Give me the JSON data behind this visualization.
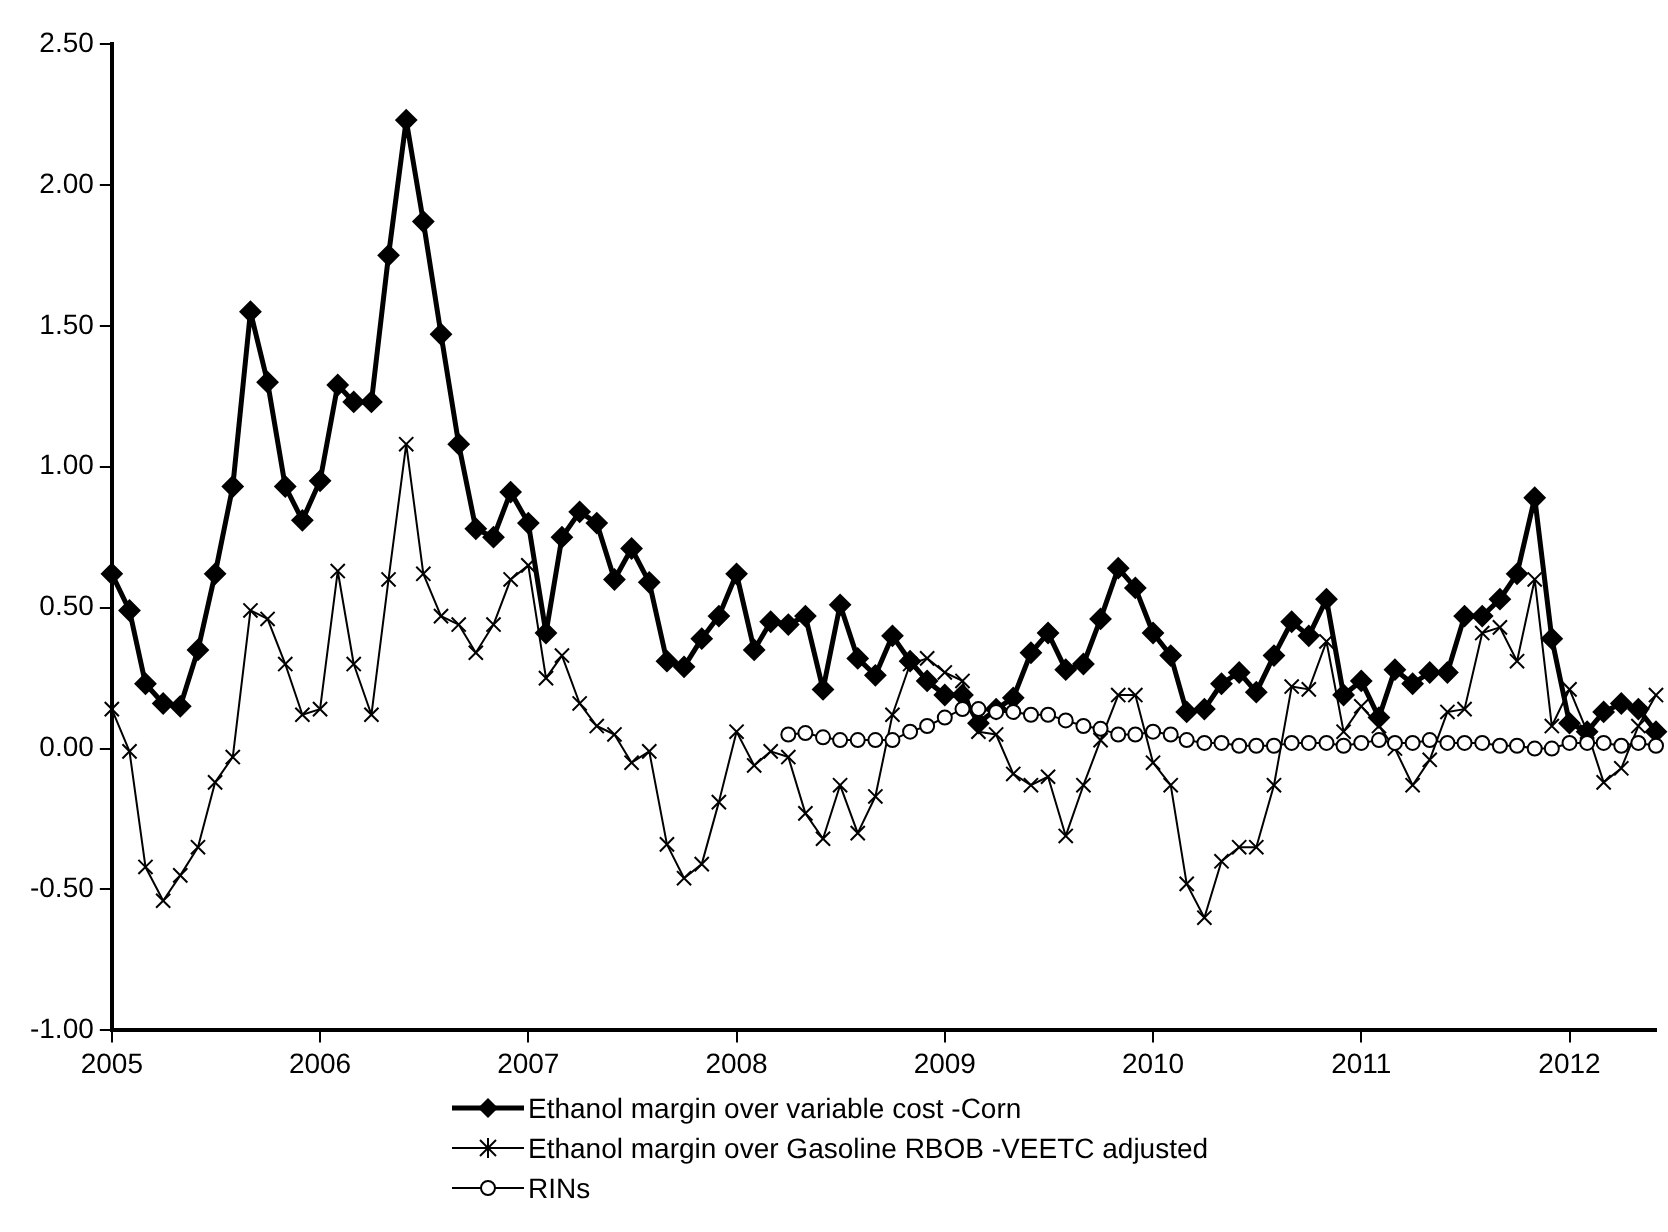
{
  "chart_data": {
    "type": "line",
    "legend": "bottom",
    "x": [
      "2005-01",
      "2005-02",
      "2005-03",
      "2005-04",
      "2005-05",
      "2005-06",
      "2005-07",
      "2005-08",
      "2005-09",
      "2005-10",
      "2005-11",
      "2005-12",
      "2006-01",
      "2006-02",
      "2006-03",
      "2006-04",
      "2006-05",
      "2006-06",
      "2006-07",
      "2006-08",
      "2006-09",
      "2006-10",
      "2006-11",
      "2006-12",
      "2007-01",
      "2007-02",
      "2007-03",
      "2007-04",
      "2007-05",
      "2007-06",
      "2007-07",
      "2007-08",
      "2007-09",
      "2007-10",
      "2007-11",
      "2007-12",
      "2008-01",
      "2008-02",
      "2008-03",
      "2008-04",
      "2008-05",
      "2008-06",
      "2008-07",
      "2008-08",
      "2008-09",
      "2008-10",
      "2008-11",
      "2008-12",
      "2009-01",
      "2009-02",
      "2009-03",
      "2009-04",
      "2009-05",
      "2009-06",
      "2009-07",
      "2009-08",
      "2009-09",
      "2009-10",
      "2009-11",
      "2009-12",
      "2010-01",
      "2010-02",
      "2010-03",
      "2010-04",
      "2010-05",
      "2010-06",
      "2010-07",
      "2010-08",
      "2010-09",
      "2010-10",
      "2010-11",
      "2010-12",
      "2011-01",
      "2011-02",
      "2011-03",
      "2011-04",
      "2011-05",
      "2011-06",
      "2011-07",
      "2011-08",
      "2011-09",
      "2011-10",
      "2011-11",
      "2011-12",
      "2012-01",
      "2012-02",
      "2012-03",
      "2012-04",
      "2012-05",
      "2012-06"
    ],
    "xlim": [
      "2005-01",
      "2012-06"
    ],
    "xticks": [
      "2005",
      "2006",
      "2007",
      "2008",
      "2009",
      "2010",
      "2011",
      "2012"
    ],
    "ylim": [
      -1,
      2.5
    ],
    "yticks": [
      {
        "value": -1,
        "label": "-1.00"
      },
      {
        "value": -0.5,
        "label": "-0.50"
      },
      {
        "value": 0,
        "label": "0.00"
      },
      {
        "value": 0.5,
        "label": "0.50"
      },
      {
        "value": 1,
        "label": "1.00"
      },
      {
        "value": 1.5,
        "label": "1.50"
      },
      {
        "value": 2,
        "label": "2.00"
      },
      {
        "value": 2.5,
        "label": "2.50"
      }
    ],
    "series": [
      {
        "name": "Ethanol margin over variable cost -Corn",
        "color": "#000000",
        "marker": "diamond",
        "values": [
          0.62,
          0.49,
          0.23,
          0.16,
          0.15,
          0.35,
          0.62,
          0.93,
          1.55,
          1.3,
          0.93,
          0.81,
          0.95,
          1.29,
          1.23,
          1.23,
          1.75,
          2.23,
          1.87,
          1.47,
          1.08,
          0.78,
          0.75,
          0.91,
          0.8,
          0.41,
          0.75,
          0.84,
          0.8,
          0.6,
          0.71,
          0.59,
          0.31,
          0.29,
          0.39,
          0.47,
          0.62,
          0.35,
          0.45,
          0.44,
          0.47,
          0.21,
          0.51,
          0.32,
          0.26,
          0.4,
          0.31,
          0.24,
          0.19,
          0.19,
          0.09,
          0.14,
          0.18,
          0.34,
          0.41,
          0.28,
          0.3,
          0.46,
          0.64,
          0.57,
          0.41,
          0.33,
          0.13,
          0.14,
          0.23,
          0.27,
          0.2,
          0.33,
          0.45,
          0.4,
          0.53,
          0.19,
          0.24,
          0.11,
          0.28,
          0.23,
          0.27,
          0.27,
          0.47,
          0.47,
          0.53,
          0.62,
          0.89,
          0.39,
          0.09,
          0.06,
          0.13,
          0.16,
          0.14,
          0.06
        ]
      },
      {
        "name": "Ethanol margin over Gasoline RBOB -VEETC adjusted",
        "color": "#000000",
        "marker": "cross",
        "values": [
          0.14,
          -0.01,
          -0.42,
          -0.54,
          -0.45,
          -0.35,
          -0.12,
          -0.03,
          0.49,
          0.46,
          0.3,
          0.12,
          0.14,
          0.63,
          0.3,
          0.12,
          0.6,
          1.08,
          0.62,
          0.47,
          0.44,
          0.34,
          0.44,
          0.6,
          0.65,
          0.25,
          0.33,
          0.16,
          0.08,
          0.05,
          -0.05,
          -0.01,
          -0.34,
          -0.46,
          -0.41,
          -0.19,
          0.06,
          -0.06,
          -0.01,
          -0.03,
          -0.23,
          -0.32,
          -0.13,
          -0.3,
          -0.17,
          0.12,
          0.3,
          0.32,
          0.27,
          0.24,
          0.06,
          0.05,
          -0.09,
          -0.13,
          -0.1,
          -0.31,
          -0.13,
          0.03,
          0.19,
          0.19,
          -0.05,
          -0.13,
          -0.48,
          -0.6,
          -0.4,
          -0.35,
          -0.35,
          -0.13,
          0.22,
          0.21,
          0.38,
          0.06,
          0.15,
          0.08,
          0.0,
          -0.13,
          -0.04,
          0.13,
          0.14,
          0.41,
          0.43,
          0.31,
          0.6,
          0.08,
          0.21,
          0.06,
          -0.12,
          -0.07,
          0.08,
          0.19
        ]
      },
      {
        "name": "RINs",
        "color": "#000000",
        "marker": "circle",
        "values": [
          null,
          null,
          null,
          null,
          null,
          null,
          null,
          null,
          null,
          null,
          null,
          null,
          null,
          null,
          null,
          null,
          null,
          null,
          null,
          null,
          null,
          null,
          null,
          null,
          null,
          null,
          null,
          null,
          null,
          null,
          null,
          null,
          null,
          null,
          null,
          null,
          null,
          null,
          null,
          0.05,
          0.055,
          0.04,
          0.03,
          0.03,
          0.03,
          0.03,
          0.06,
          0.08,
          0.11,
          0.14,
          0.14,
          0.13,
          0.13,
          0.12,
          0.12,
          0.1,
          0.08,
          0.07,
          0.05,
          0.05,
          0.06,
          0.05,
          0.03,
          0.02,
          0.02,
          0.01,
          0.01,
          0.01,
          0.02,
          0.02,
          0.02,
          0.01,
          0.02,
          0.03,
          0.02,
          0.02,
          0.03,
          0.02,
          0.02,
          0.02,
          0.01,
          0.01,
          0.0,
          0.0,
          0.02,
          0.02,
          0.02,
          0.01,
          0.02,
          0.01
        ]
      }
    ]
  }
}
